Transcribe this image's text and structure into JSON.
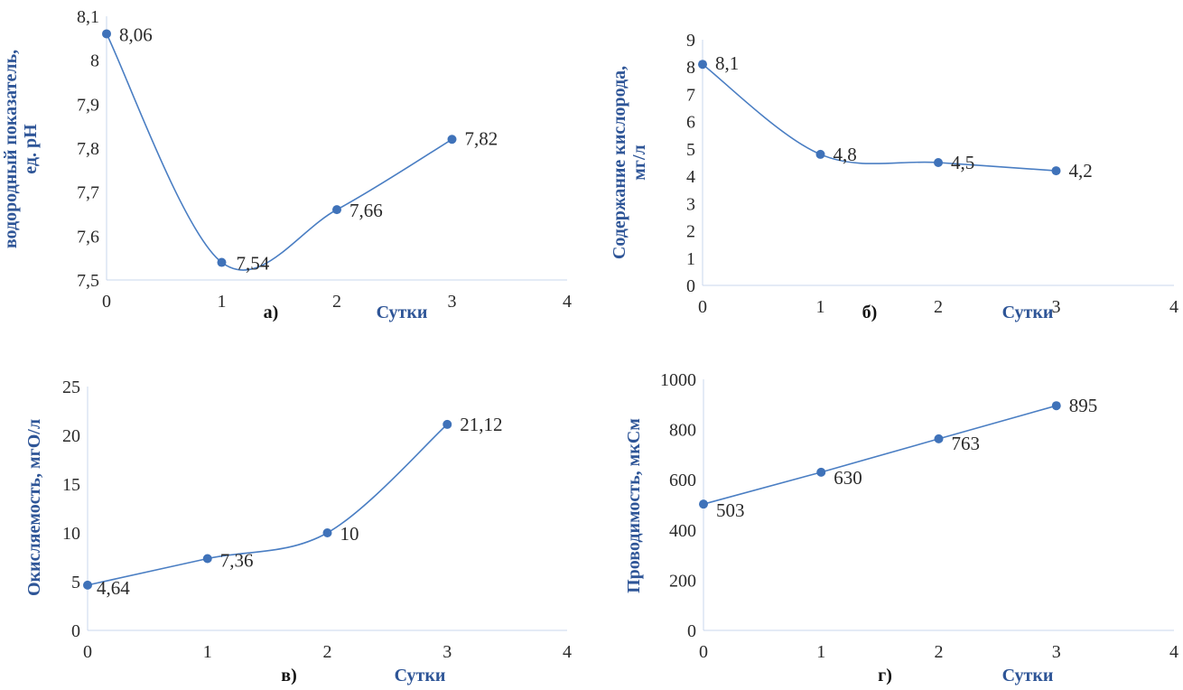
{
  "chart_data": [
    {
      "type": "line",
      "panel_label": "а)",
      "xlabel": "Сутки",
      "ylabel": [
        "водородный показатель,",
        "ед. pH"
      ],
      "x": [
        0,
        1,
        2,
        3
      ],
      "values": [
        8.06,
        7.54,
        7.66,
        7.82
      ],
      "data_labels": [
        "8,06",
        "7,54",
        "7,66",
        "7,82"
      ],
      "xlim": [
        0,
        4
      ],
      "ylim": [
        7.5,
        8.1
      ],
      "xticks": [
        "0",
        "1",
        "2",
        "3",
        "4"
      ],
      "yticks": [
        "7,5",
        "7,6",
        "7,7",
        "7,8",
        "7,9",
        "8",
        "8,1"
      ],
      "smooth": true,
      "grid": false,
      "line_color": "#4a7ec3"
    },
    {
      "type": "line",
      "panel_label": "б)",
      "xlabel": "Сутки",
      "ylabel": [
        "Содержание кислорода,",
        "мг/л"
      ],
      "x": [
        0,
        1,
        2,
        3
      ],
      "values": [
        8.1,
        4.8,
        4.5,
        4.2
      ],
      "data_labels": [
        "8,1",
        "4,8",
        "4,5",
        "4,2"
      ],
      "xlim": [
        0,
        4
      ],
      "ylim": [
        0,
        9
      ],
      "xticks": [
        "0",
        "1",
        "2",
        "3",
        "4"
      ],
      "yticks": [
        "0",
        "1",
        "2",
        "3",
        "4",
        "5",
        "6",
        "7",
        "8",
        "9"
      ],
      "smooth": true,
      "grid": false,
      "line_color": "#4a7ec3"
    },
    {
      "type": "line",
      "panel_label": "в)",
      "xlabel": "Сутки",
      "ylabel": [
        "Окисляемость, мгО/л"
      ],
      "x": [
        0,
        1,
        2,
        3
      ],
      "values": [
        4.64,
        7.36,
        10,
        21.12
      ],
      "data_labels": [
        "4,64",
        "7,36",
        "10",
        "21,12"
      ],
      "xlim": [
        0,
        4
      ],
      "ylim": [
        0,
        25
      ],
      "xticks": [
        "0",
        "1",
        "2",
        "3",
        "4"
      ],
      "yticks": [
        "0",
        "5",
        "10",
        "15",
        "20",
        "25"
      ],
      "smooth": true,
      "grid": false,
      "line_color": "#4a7ec3"
    },
    {
      "type": "line",
      "panel_label": "г)",
      "xlabel": "Сутки",
      "ylabel": [
        "Проводимость, мкСм"
      ],
      "x": [
        0,
        1,
        2,
        3
      ],
      "values": [
        503,
        630,
        763,
        895
      ],
      "data_labels": [
        "503",
        "630",
        "763",
        "895"
      ],
      "xlim": [
        0,
        4
      ],
      "ylim": [
        0,
        1000
      ],
      "xticks": [
        "0",
        "1",
        "2",
        "3",
        "4"
      ],
      "yticks": [
        "0",
        "200",
        "400",
        "600",
        "800",
        "1000"
      ],
      "smooth": false,
      "grid": false,
      "line_color": "#4a7ec3"
    }
  ]
}
